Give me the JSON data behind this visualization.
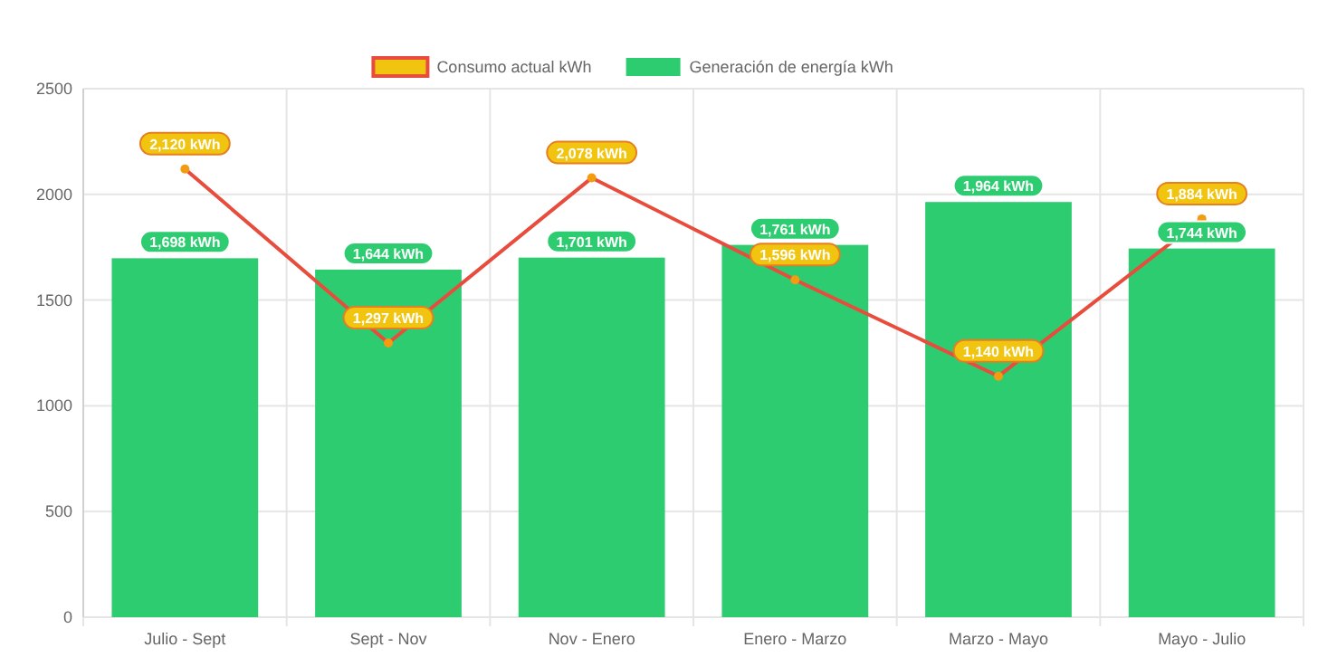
{
  "chart_data": {
    "type": "bar",
    "categories": [
      "Julio - Sept",
      "Sept - Nov",
      "Nov - Enero",
      "Enero - Marzo",
      "Marzo - Mayo",
      "Mayo - Julio"
    ],
    "series": [
      {
        "name": "Consumo actual kWh",
        "type": "line",
        "color": "#e74c3c",
        "values": [
          2120,
          1297,
          2078,
          1596,
          1140,
          1884
        ],
        "value_labels": [
          "2,120 kWh",
          "1,297 kWh",
          "2,078 kWh",
          "1,596 kWh",
          "1,140 kWh",
          "1,884 kWh"
        ]
      },
      {
        "name": "Generación de energía kWh",
        "color": "#2ecc71",
        "values": [
          1698,
          1644,
          1701,
          1761,
          1964,
          1744
        ],
        "value_labels": [
          "1,698 kWh",
          "1,644 kWh",
          "1,701 kWh",
          "1,761 kWh",
          "1,964 kWh",
          "1,744 kWh"
        ]
      }
    ],
    "ylim": [
      0,
      2500
    ],
    "yticks": [
      0,
      500,
      1000,
      1500,
      2000,
      2500
    ],
    "grid": true,
    "legend": "top",
    "marker": "circle"
  }
}
